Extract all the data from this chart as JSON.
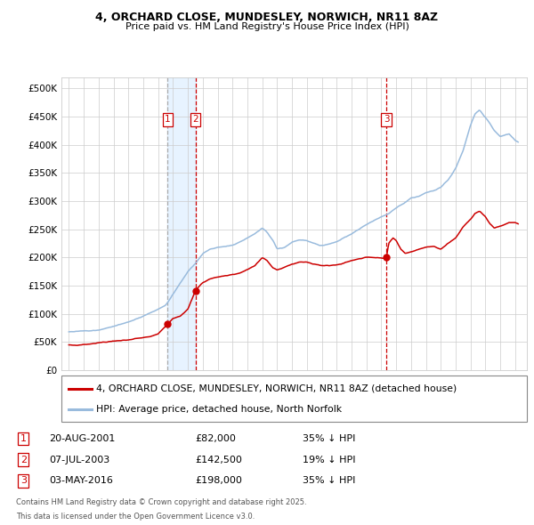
{
  "title1": "4, ORCHARD CLOSE, MUNDESLEY, NORWICH, NR11 8AZ",
  "title2": "Price paid vs. HM Land Registry's House Price Index (HPI)",
  "legend_red": "4, ORCHARD CLOSE, MUNDESLEY, NORWICH, NR11 8AZ (detached house)",
  "legend_blue": "HPI: Average price, detached house, North Norfolk",
  "footnote_line1": "Contains HM Land Registry data © Crown copyright and database right 2025.",
  "footnote_line2": "This data is licensed under the Open Government Licence v3.0.",
  "transactions": [
    {
      "num": 1,
      "date_label": "20-AUG-2001",
      "date_x": 2001.64,
      "price": 82000,
      "price_label": "£82,000",
      "pct": "35% ↓ HPI"
    },
    {
      "num": 2,
      "date_label": "07-JUL-2003",
      "date_x": 2003.52,
      "price": 142500,
      "price_label": "£142,500",
      "pct": "19% ↓ HPI"
    },
    {
      "num": 3,
      "date_label": "03-MAY-2016",
      "date_x": 2016.34,
      "price": 198000,
      "price_label": "£198,000",
      "pct": "35% ↓ HPI"
    }
  ],
  "xmin": 1994.5,
  "xmax": 2025.8,
  "ymin": 0,
  "ymax": 520000,
  "yticks": [
    0,
    50000,
    100000,
    150000,
    200000,
    250000,
    300000,
    350000,
    400000,
    450000,
    500000
  ],
  "ytick_labels": [
    "£0",
    "£50K",
    "£100K",
    "£150K",
    "£200K",
    "£250K",
    "£300K",
    "£350K",
    "£400K",
    "£450K",
    "£500K"
  ],
  "background_color": "#ffffff",
  "grid_color": "#cccccc",
  "red_color": "#cc0000",
  "blue_color": "#99bbdd",
  "shade_color": "#ddeeff",
  "hpi_anchors": [
    [
      1995.0,
      68000
    ],
    [
      1996.0,
      70000
    ],
    [
      1997.0,
      72000
    ],
    [
      1998.0,
      78000
    ],
    [
      1999.0,
      85000
    ],
    [
      2000.0,
      96000
    ],
    [
      2001.0,
      108000
    ],
    [
      2001.5,
      115000
    ],
    [
      2002.0,
      135000
    ],
    [
      2002.5,
      155000
    ],
    [
      2003.0,
      175000
    ],
    [
      2003.5,
      190000
    ],
    [
      2004.0,
      207000
    ],
    [
      2004.5,
      215000
    ],
    [
      2005.0,
      218000
    ],
    [
      2005.5,
      220000
    ],
    [
      2006.0,
      222000
    ],
    [
      2006.5,
      228000
    ],
    [
      2007.0,
      235000
    ],
    [
      2007.5,
      242000
    ],
    [
      2008.0,
      252000
    ],
    [
      2008.3,
      245000
    ],
    [
      2008.7,
      230000
    ],
    [
      2009.0,
      215000
    ],
    [
      2009.5,
      218000
    ],
    [
      2010.0,
      228000
    ],
    [
      2010.5,
      232000
    ],
    [
      2011.0,
      230000
    ],
    [
      2011.5,
      225000
    ],
    [
      2012.0,
      222000
    ],
    [
      2012.5,
      224000
    ],
    [
      2013.0,
      228000
    ],
    [
      2013.5,
      235000
    ],
    [
      2014.0,
      242000
    ],
    [
      2014.5,
      250000
    ],
    [
      2015.0,
      258000
    ],
    [
      2015.5,
      265000
    ],
    [
      2016.0,
      272000
    ],
    [
      2016.5,
      278000
    ],
    [
      2017.0,
      288000
    ],
    [
      2017.5,
      296000
    ],
    [
      2018.0,
      305000
    ],
    [
      2018.5,
      308000
    ],
    [
      2019.0,
      315000
    ],
    [
      2019.5,
      318000
    ],
    [
      2020.0,
      325000
    ],
    [
      2020.5,
      338000
    ],
    [
      2021.0,
      358000
    ],
    [
      2021.5,
      390000
    ],
    [
      2022.0,
      435000
    ],
    [
      2022.3,
      455000
    ],
    [
      2022.6,
      462000
    ],
    [
      2023.0,
      448000
    ],
    [
      2023.3,
      438000
    ],
    [
      2023.6,
      425000
    ],
    [
      2024.0,
      415000
    ],
    [
      2024.3,
      418000
    ],
    [
      2024.6,
      420000
    ],
    [
      2025.0,
      408000
    ],
    [
      2025.2,
      405000
    ]
  ],
  "price_anchors": [
    [
      1995.0,
      45000
    ],
    [
      1995.5,
      44000
    ],
    [
      1996.0,
      46000
    ],
    [
      1996.5,
      47000
    ],
    [
      1997.0,
      49000
    ],
    [
      1997.5,
      50000
    ],
    [
      1998.0,
      52000
    ],
    [
      1998.5,
      53000
    ],
    [
      1999.0,
      54000
    ],
    [
      1999.5,
      56000
    ],
    [
      2000.0,
      58000
    ],
    [
      2000.5,
      60000
    ],
    [
      2001.0,
      65000
    ],
    [
      2001.64,
      82000
    ],
    [
      2002.0,
      92000
    ],
    [
      2002.5,
      96000
    ],
    [
      2003.0,
      108000
    ],
    [
      2003.52,
      142500
    ],
    [
      2004.0,
      155000
    ],
    [
      2004.5,
      162000
    ],
    [
      2005.0,
      165000
    ],
    [
      2005.5,
      168000
    ],
    [
      2006.0,
      170000
    ],
    [
      2006.5,
      172000
    ],
    [
      2007.0,
      178000
    ],
    [
      2007.5,
      185000
    ],
    [
      2008.0,
      200000
    ],
    [
      2008.3,
      195000
    ],
    [
      2008.7,
      182000
    ],
    [
      2009.0,
      178000
    ],
    [
      2009.5,
      182000
    ],
    [
      2010.0,
      188000
    ],
    [
      2010.5,
      192000
    ],
    [
      2011.0,
      192000
    ],
    [
      2011.5,
      188000
    ],
    [
      2012.0,
      185000
    ],
    [
      2012.5,
      185000
    ],
    [
      2013.0,
      187000
    ],
    [
      2013.5,
      190000
    ],
    [
      2014.0,
      195000
    ],
    [
      2014.5,
      198000
    ],
    [
      2015.0,
      200000
    ],
    [
      2015.5,
      200000
    ],
    [
      2016.34,
      198000
    ],
    [
      2016.5,
      225000
    ],
    [
      2016.8,
      235000
    ],
    [
      2017.0,
      230000
    ],
    [
      2017.3,
      215000
    ],
    [
      2017.6,
      208000
    ],
    [
      2018.0,
      210000
    ],
    [
      2018.5,
      215000
    ],
    [
      2019.0,
      218000
    ],
    [
      2019.5,
      220000
    ],
    [
      2020.0,
      215000
    ],
    [
      2020.5,
      225000
    ],
    [
      2021.0,
      235000
    ],
    [
      2021.5,
      255000
    ],
    [
      2022.0,
      268000
    ],
    [
      2022.3,
      278000
    ],
    [
      2022.6,
      282000
    ],
    [
      2023.0,
      272000
    ],
    [
      2023.3,
      260000
    ],
    [
      2023.6,
      252000
    ],
    [
      2024.0,
      255000
    ],
    [
      2024.3,
      258000
    ],
    [
      2024.6,
      262000
    ],
    [
      2025.0,
      262000
    ],
    [
      2025.2,
      260000
    ]
  ]
}
